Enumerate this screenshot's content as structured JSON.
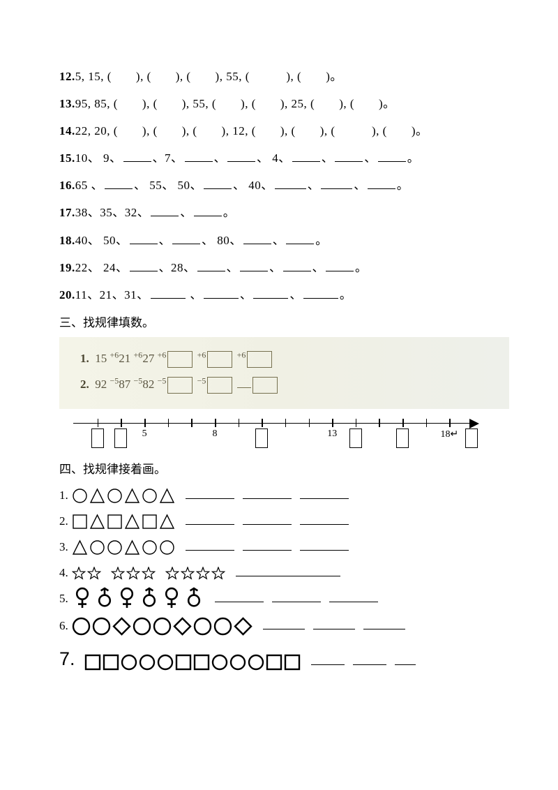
{
  "questions": [
    {
      "num": "12.",
      "text": "5, 15, (　　), (　　), (　　), 55, (　　　), (　　)。"
    },
    {
      "num": "13.",
      "text": "95, 85, (　　), (　　), 55, (　　), (　　), 25, (　　), (　　)。"
    },
    {
      "num": "14.",
      "text": "22, 20, (　　), (　　), (　　), 12, (　　), (　　), (　　　), (　　)。"
    }
  ],
  "q15": {
    "num": "15.",
    "parts": [
      "10、 9、",
      "、7、",
      "、",
      "、 4、",
      "、",
      "、",
      "。"
    ],
    "blanks": [
      40,
      40,
      40,
      40,
      40,
      40
    ]
  },
  "q16": {
    "num": "16.",
    "parts": [
      "65 、",
      "、 55、 50、",
      "、 40、",
      "、",
      "、",
      "。"
    ],
    "blanks": [
      40,
      40,
      45,
      45,
      40
    ]
  },
  "q17": {
    "num": "17.",
    "parts": [
      "38、35、32、",
      "、",
      "。"
    ],
    "blanks": [
      40,
      40
    ]
  },
  "q18": {
    "num": "18.",
    "parts": [
      "40、 50、",
      "、",
      "、 80、",
      "、",
      "。"
    ],
    "blanks": [
      40,
      40,
      40,
      40
    ]
  },
  "q19": {
    "num": "19.",
    "parts": [
      "22、 24、",
      "、28、",
      "、",
      "、",
      "、",
      "。"
    ],
    "blanks": [
      40,
      40,
      40,
      40,
      40
    ]
  },
  "q20": {
    "num": "20.",
    "parts": [
      "11、21、31、",
      " 、",
      "、",
      "、",
      "。"
    ],
    "blanks": [
      50,
      50,
      50,
      50
    ]
  },
  "section3": {
    "title": "三、找规律填数。",
    "row1": {
      "label": "1.",
      "v": [
        "15",
        "21",
        "27"
      ],
      "op": "+6"
    },
    "row2": {
      "label": "2.",
      "v": [
        "92",
        "87",
        "82"
      ],
      "op": "−5"
    },
    "numberline": {
      "ticks_pct": [
        6,
        11.8,
        17.6,
        23.4,
        29.2,
        35,
        40.8,
        46.6,
        52.4,
        58.2,
        64,
        69.8,
        75.6,
        81.4,
        87.2,
        93
      ],
      "items": [
        {
          "pct": 6,
          "type": "box"
        },
        {
          "pct": 11.8,
          "type": "box"
        },
        {
          "pct": 17.6,
          "type": "label",
          "text": "5"
        },
        {
          "pct": 35,
          "type": "label",
          "text": "8"
        },
        {
          "pct": 46.6,
          "type": "box"
        },
        {
          "pct": 64,
          "type": "label",
          "text": "13"
        },
        {
          "pct": 69.8,
          "type": "box"
        },
        {
          "pct": 81.4,
          "type": "box"
        },
        {
          "pct": 93,
          "type": "label",
          "text": "18↵"
        },
        {
          "pct": 98.5,
          "type": "box"
        }
      ]
    }
  },
  "section4": {
    "title": "四、找规律接着画。",
    "rows": [
      {
        "num": "1.",
        "shapes": [
          "circle",
          "triangle",
          "circle",
          "triangle",
          "circle",
          "triangle"
        ],
        "blanks": [
          70,
          70,
          70
        ],
        "size": 23
      },
      {
        "num": "2.",
        "shapes": [
          "square",
          "triangle",
          "square",
          "triangle",
          "square",
          "triangle"
        ],
        "blanks": [
          70,
          70,
          70
        ],
        "size": 23
      },
      {
        "num": "3.",
        "shapes": [
          "triangle",
          "circle",
          "circle",
          "triangle",
          "circle",
          "circle"
        ],
        "blanks": [
          70,
          70,
          70
        ],
        "size": 23
      },
      {
        "num": "4.",
        "shapes": [
          "star",
          "star",
          "gap",
          "star",
          "star",
          "star",
          "gap",
          "star",
          "star",
          "star",
          "star"
        ],
        "blanks": [
          150
        ],
        "size": 20
      },
      {
        "num": "5.",
        "shapes": [
          "female",
          "male",
          "female",
          "male",
          "female",
          "male"
        ],
        "blanks": [
          70,
          70,
          70
        ],
        "size": 30,
        "bold": true
      },
      {
        "num": "6.",
        "shapes": [
          "bcircle",
          "bcircle",
          "diamond",
          "bcircle",
          "bcircle",
          "diamond",
          "bcircle",
          "bcircle",
          "diamond"
        ],
        "blanks": [
          60,
          60,
          60
        ],
        "size": 27,
        "bold": true
      },
      {
        "num": "7.",
        "shapes": [
          "bsquare",
          "bsquare",
          "bcircle",
          "bcircle",
          "bcircle",
          "bsquare",
          "bsquare",
          "bcircle",
          "bcircle",
          "bcircle",
          "bsquare",
          "bsquare"
        ],
        "blanks": [
          48,
          48,
          30
        ],
        "size": 24,
        "bold": true,
        "big": true
      }
    ]
  }
}
